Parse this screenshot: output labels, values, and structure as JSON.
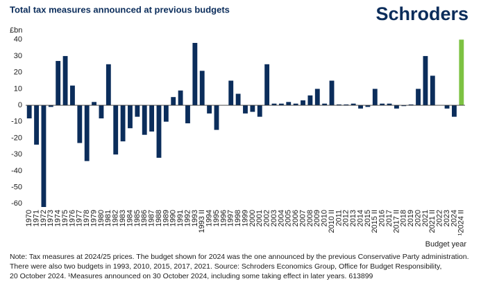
{
  "chart_data": {
    "type": "bar",
    "title": "Total tax measures announced at previous budgets",
    "brand": "Schroders",
    "y_label": "£bn",
    "x_label": "Budget year",
    "notes": [
      "Note: Tax measures at 2024/25 prices. The budget shown for 2024 was the one announced by the previous Conservative Party administration.",
      "There were also two budgets in 1993, 2010, 2015, 2017, 2021. Source: Schroders Economics Group, Office for Budget Responsibility,",
      "20 October 2024. ¹Measures announced on 30 October 2024, including some taking effect in later years. 613899"
    ],
    "categories": [
      "1970",
      "1971",
      "1972",
      "1973",
      "1974",
      "1975",
      "1976",
      "1977",
      "1978",
      "1979",
      "1980",
      "1981",
      "1982",
      "1983",
      "1984",
      "1985",
      "1986",
      "1987",
      "1988",
      "1989",
      "1990",
      "1991",
      "1992",
      "1993",
      "1993 II",
      "1994",
      "1995",
      "1996",
      "1997",
      "1998",
      "1999",
      "2000",
      "2001",
      "2002",
      "2003",
      "2004",
      "2005",
      "2006",
      "2007",
      "2008",
      "2009",
      "2010",
      "2010 II",
      "2011",
      "2012",
      "2013",
      "2014",
      "2015",
      "2015 II",
      "2016",
      "2017",
      "2017 II",
      "2018",
      "2019",
      "2020",
      "2021",
      "2021 II",
      "2022",
      "2023",
      "2024",
      "¹2024 II"
    ],
    "values": [
      -8,
      -24,
      -62,
      -1,
      27,
      30,
      12,
      -23,
      -34,
      2,
      -8,
      25,
      -30,
      -22,
      -14,
      -7,
      -18,
      -16,
      -32,
      -10,
      5,
      9,
      -11,
      38,
      21,
      -5,
      -15,
      0,
      15,
      7,
      -5,
      -4,
      -7,
      25,
      1,
      1,
      2,
      1,
      3,
      6,
      10,
      1,
      15,
      0.5,
      0.5,
      1,
      -2,
      -1,
      10,
      1,
      1,
      -2,
      -0.5,
      0.5,
      10,
      30,
      18,
      0,
      -2,
      -7,
      40
    ],
    "color": "#0b2d5b",
    "highlight_color": "#7dc242",
    "highlight_category": "¹2024 II",
    "ylim": [
      -62,
      42
    ],
    "yticks": [
      -60,
      -50,
      -40,
      -30,
      -20,
      -10,
      0,
      10,
      20,
      30,
      40
    ],
    "grid": false
  }
}
